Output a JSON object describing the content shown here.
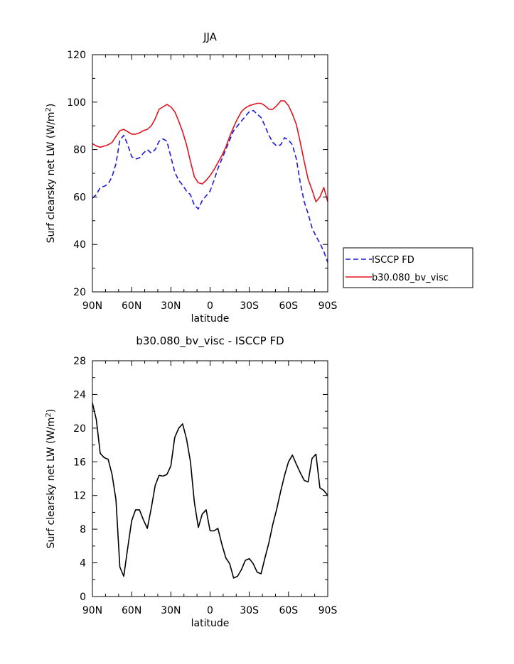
{
  "chart_data": [
    {
      "type": "line",
      "title": "JJA",
      "xlabel": "latitude",
      "ylabel": "Surf clearsky net LW (W/m",
      "ylabel_sup": "2",
      "ylabel_close": ")",
      "xlim": [
        -90,
        90
      ],
      "ylim": [
        20,
        120
      ],
      "xticks": [
        -90,
        -60,
        -30,
        0,
        30,
        60,
        90
      ],
      "xtick_labels": [
        "90N",
        "60N",
        "30N",
        "0",
        "30S",
        "60S",
        "90S"
      ],
      "yticks": [
        20,
        40,
        60,
        80,
        100,
        120
      ],
      "ytick_labels": [
        "20",
        "40",
        "60",
        "80",
        "100",
        "120"
      ],
      "legend_position": "outside-right",
      "grid": false,
      "series": [
        {
          "name": "ISCCP FD",
          "color": "#1a1adb",
          "dash": true,
          "x": [
            -90,
            -87,
            -84,
            -81,
            -78,
            -75,
            -72,
            -69,
            -66,
            -63,
            -60,
            -57,
            -54,
            -51,
            -48,
            -45,
            -42,
            -39,
            -36,
            -33,
            -30,
            -27,
            -24,
            -21,
            -18,
            -15,
            -12,
            -9,
            -6,
            -3,
            0,
            3,
            6,
            9,
            12,
            15,
            18,
            21,
            24,
            27,
            30,
            33,
            36,
            39,
            42,
            45,
            48,
            51,
            54,
            57,
            60,
            63,
            66,
            69,
            72,
            75,
            78,
            81,
            84,
            87,
            90
          ],
          "y": [
            59.5,
            61,
            64,
            64.5,
            65.5,
            68.5,
            74,
            84,
            86,
            82,
            77,
            76,
            76.5,
            78.5,
            80,
            78.5,
            80,
            83.5,
            84.5,
            83.5,
            77,
            70.5,
            67,
            65,
            62.5,
            61,
            56.5,
            55,
            58.5,
            60.5,
            62.5,
            67,
            72,
            76,
            80,
            84,
            88,
            90,
            92,
            94,
            96,
            96.5,
            95,
            93.5,
            90,
            86,
            83,
            81.5,
            82,
            85,
            84,
            82,
            76,
            66,
            58,
            53,
            47,
            43.5,
            40.5,
            37,
            32.5
          ]
        },
        {
          "name": "b30.080_bv_visc",
          "color": "#e0141e",
          "dash": false,
          "x": [
            -90,
            -87,
            -84,
            -81,
            -78,
            -75,
            -72,
            -69,
            -66,
            -63,
            -60,
            -57,
            -54,
            -51,
            -48,
            -45,
            -42,
            -39,
            -36,
            -33,
            -30,
            -27,
            -24,
            -21,
            -18,
            -15,
            -12,
            -9,
            -6,
            -3,
            0,
            3,
            6,
            9,
            12,
            15,
            18,
            21,
            24,
            27,
            30,
            33,
            36,
            39,
            42,
            45,
            48,
            51,
            54,
            57,
            60,
            63,
            66,
            69,
            72,
            75,
            78,
            81,
            84,
            87,
            90
          ],
          "y": [
            82.5,
            81.5,
            81,
            81.5,
            82,
            83,
            85.5,
            88,
            88.5,
            87.5,
            86.5,
            86.5,
            87,
            88,
            88.5,
            90,
            93,
            97,
            98,
            99,
            98,
            96,
            92,
            87.5,
            82,
            75,
            68.5,
            66,
            65.5,
            67,
            69,
            71.5,
            74.5,
            77.5,
            81,
            85.5,
            89.5,
            93,
            96,
            97.5,
            98.5,
            99,
            99.5,
            99.5,
            98.5,
            97,
            97,
            98.5,
            100.5,
            100.5,
            98.5,
            95,
            90.5,
            83,
            75,
            67.5,
            63,
            58,
            60,
            64,
            58
          ]
        }
      ]
    },
    {
      "type": "line",
      "title": "b30.080_bv_visc - ISCCP FD",
      "xlabel": "latitude",
      "ylabel": "Surf clearsky net LW (W/m",
      "ylabel_sup": "2",
      "ylabel_close": ")",
      "xlim": [
        -90,
        90
      ],
      "ylim": [
        0,
        28
      ],
      "xticks": [
        -90,
        -60,
        -30,
        0,
        30,
        60,
        90
      ],
      "xtick_labels": [
        "90N",
        "60N",
        "30N",
        "0",
        "30S",
        "60S",
        "90S"
      ],
      "yticks": [
        0,
        4,
        8,
        12,
        16,
        20,
        24,
        28
      ],
      "ytick_labels": [
        "0",
        "4",
        "8",
        "12",
        "16",
        "20",
        "24",
        "28"
      ],
      "grid": false,
      "series": [
        {
          "color": "#000000",
          "dash": false,
          "x": [
            -90,
            -87,
            -84,
            -81,
            -78,
            -75,
            -72,
            -69,
            -66,
            -63,
            -60,
            -57,
            -54,
            -51,
            -48,
            -45,
            -42,
            -39,
            -36,
            -33,
            -30,
            -27,
            -24,
            -21,
            -18,
            -15,
            -12,
            -9,
            -6,
            -3,
            0,
            3,
            6,
            9,
            12,
            15,
            18,
            21,
            24,
            27,
            30,
            33,
            36,
            39,
            42,
            45,
            48,
            51,
            54,
            57,
            60,
            63,
            66,
            69,
            72,
            75,
            78,
            81,
            84,
            87,
            90
          ],
          "y": [
            23,
            21,
            17,
            16.5,
            16.3,
            14.5,
            11.5,
            3.5,
            2.4,
            5.8,
            9,
            10.3,
            10.3,
            9.1,
            8.1,
            10.5,
            13.2,
            14.4,
            14.3,
            14.5,
            15.5,
            18.9,
            20,
            20.5,
            18.7,
            16,
            11.2,
            8.2,
            9.8,
            10.3,
            7.8,
            7.8,
            8.1,
            6.2,
            4.6,
            3.9,
            2.2,
            2.4,
            3.2,
            4.3,
            4.5,
            3.9,
            2.9,
            2.7,
            4.6,
            6.4,
            8.6,
            10.4,
            12.5,
            14.4,
            16,
            16.8,
            15.7,
            14.7,
            13.8,
            13.6,
            16.4,
            16.9,
            12.9,
            12.6,
            12
          ]
        }
      ]
    }
  ]
}
